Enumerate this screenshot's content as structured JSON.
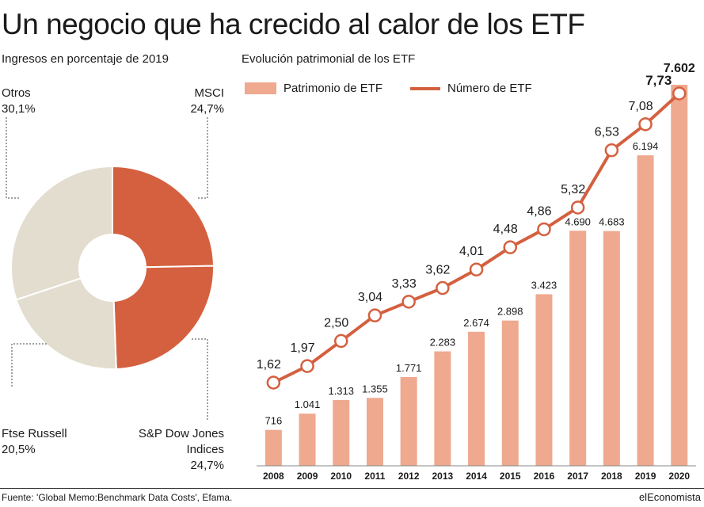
{
  "title": "Un negocio que ha crecido al calor de los ETF",
  "pie": {
    "subtitle": "Ingresos en porcentaje de 2019",
    "segments": [
      {
        "name": "MSCI",
        "value": 24.7,
        "label": "24,7%",
        "color": "#d4603f"
      },
      {
        "name": "S&P Dow Jones Indices",
        "value": 24.7,
        "label": "24,7%",
        "color": "#d4603f"
      },
      {
        "name": "Ftse Russell",
        "value": 20.5,
        "label": "20,5%",
        "color": "#e2ddcf"
      },
      {
        "name": "Otros",
        "value": 30.1,
        "label": "30,1%",
        "color": "#e2ddcf"
      }
    ],
    "labels": {
      "otros_name": "Otros",
      "otros_value": "30,1%",
      "msci_name": "MSCI",
      "msci_value": "24,7%",
      "ftse_name": "Ftse Russell",
      "ftse_value": "20,5%",
      "sp_name_1": "S&P Dow Jones",
      "sp_name_2": "Indices",
      "sp_value": "24,7%"
    }
  },
  "chart_data": {
    "type": "bar",
    "subtitle": "Evolución patrimonial de los ETF",
    "categories": [
      "2008",
      "2009",
      "2010",
      "2011",
      "2012",
      "2013",
      "2014",
      "2015",
      "2016",
      "2017",
      "2018",
      "2019",
      "2020"
    ],
    "series": [
      {
        "name": "Patrimonio de ETF",
        "type": "bar",
        "color": "#eea98e",
        "values": [
          716,
          1041,
          1313,
          1355,
          1771,
          2283,
          2674,
          2898,
          3423,
          4690,
          4683,
          6194,
          7602
        ],
        "labels": [
          "716",
          "1.041",
          "1.313",
          "1.355",
          "1.771",
          "2.283",
          "2.674",
          "2.898",
          "3.423",
          "4.690",
          "4.683",
          "6.194",
          "7.602"
        ]
      },
      {
        "name": "Número de ETF",
        "type": "line",
        "color": "#d4603f",
        "values": [
          1.62,
          1.97,
          2.5,
          3.04,
          3.33,
          3.62,
          4.01,
          4.48,
          4.86,
          5.32,
          6.53,
          7.08,
          7.73
        ],
        "labels": [
          "1,62",
          "1,97",
          "2,50",
          "3,04",
          "3,33",
          "3,62",
          "4,01",
          "4,48",
          "4,86",
          "5,32",
          "6,53",
          "7,08",
          "7,73"
        ]
      }
    ],
    "legend_position": "top-left",
    "grid": false
  },
  "footer": {
    "source": "Fuente: 'Global Memo:Benchmark Data Costs', Efama.",
    "brand": "elEconomista"
  }
}
